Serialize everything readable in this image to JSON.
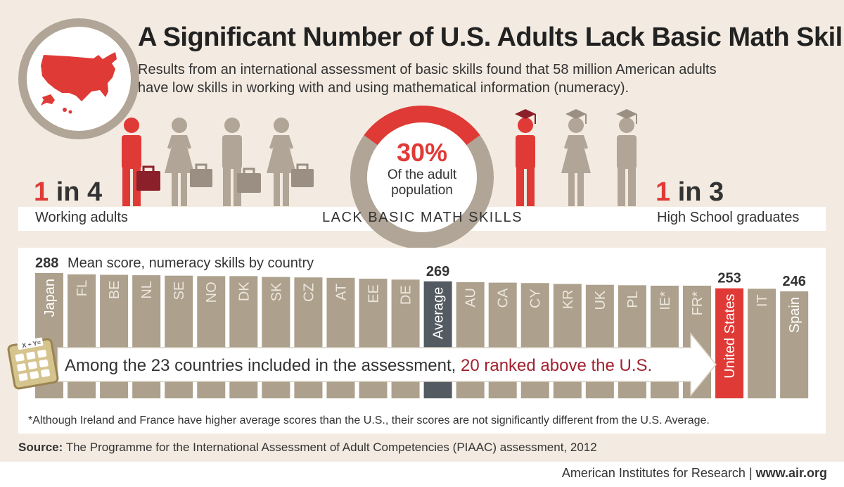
{
  "header": {
    "title": "A Significant Number of U.S. Adults Lack Basic Math Skills",
    "subtitle_line1": "Results from an international assessment of basic skills found that 58 million American adults",
    "subtitle_line2": "have low skills in working with and using mathematical information (numeracy)."
  },
  "stats": {
    "working_ratio_num": "1",
    "working_ratio_rest": " in 4",
    "working_label": "Working adults",
    "center_label": "LACK BASIC MATH SKILLS",
    "donut_percent": "30%",
    "donut_label_line1": "Of the adult",
    "donut_label_line2": "population",
    "donut_fraction": 0.3,
    "hs_ratio_num": "1",
    "hs_ratio_rest": " in 3",
    "hs_label": "High School graduates"
  },
  "colors": {
    "accent_red": "#e03a37",
    "bar_tan": "#ada08c",
    "bar_average": "#535a61",
    "figure_tan": "#b0a596",
    "briefcase_dark": "#8b1f2a",
    "briefcase_tan": "#9a8f82",
    "text_dark": "#333333",
    "highlight_text": "#a3202e"
  },
  "chart_data": {
    "type": "bar",
    "title": "Mean score, numeracy skills by country",
    "categories": [
      "Japan",
      "FL",
      "BE",
      "NL",
      "SE",
      "NO",
      "DK",
      "SK",
      "CZ",
      "AT",
      "EE",
      "DE",
      "Average",
      "AU",
      "CA",
      "CY",
      "KR",
      "UK",
      "PL",
      "IE*",
      "FR*",
      "United States",
      "IT",
      "Spain"
    ],
    "values": [
      288,
      285,
      284,
      283,
      282,
      281,
      281,
      279,
      278,
      277,
      275,
      273,
      269,
      267,
      266,
      265,
      263,
      261,
      260,
      259,
      259,
      253,
      252,
      246
    ],
    "value_labels": {
      "Japan": "288",
      "Average": "269",
      "United States": "253",
      "Spain": "246"
    },
    "highlight": {
      "Average": "#535a61",
      "United States": "#e03a37"
    },
    "ylim": [
      0,
      288
    ],
    "xlabel": "",
    "ylabel": "",
    "grid": false
  },
  "callout": {
    "text_main": "Among the 23 countries included in the assessment, ",
    "text_highlight": "20 ranked above the U.S.",
    "calc_keys": "X ÷ Y="
  },
  "footnote": "*Although Ireland and France have higher average scores than the U.S., their scores are not significantly different from the U.S. Average.",
  "source": {
    "label": "Source:",
    "text": " The Programme for the International Assessment of Adult Competencies (PIAAC) assessment, 2012"
  },
  "footer": {
    "org": "American Institutes for Research",
    "separator": "|",
    "site": "www.air.org"
  },
  "icons": [
    "us-map-icon",
    "person-icon",
    "briefcase-icon",
    "graduation-cap-icon",
    "calculator-icon",
    "arrow-icon"
  ]
}
